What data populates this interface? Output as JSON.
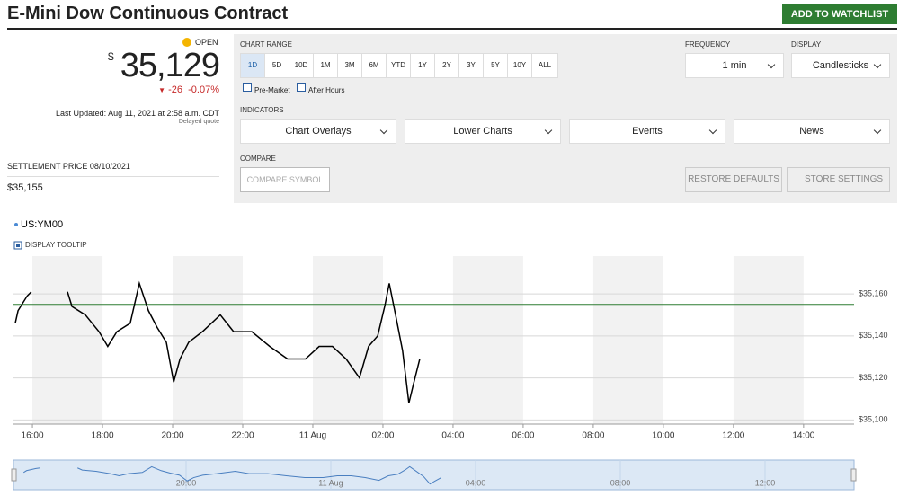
{
  "header": {
    "title": "E-Mini Dow Continuous Contract",
    "watchlist": "ADD TO WATCHLIST"
  },
  "quote": {
    "status": "OPEN",
    "currency": "$",
    "price": "35,129",
    "change": "-26",
    "change_pct": "-0.07%",
    "updated": "Last Updated: Aug 11, 2021 at 2:58 a.m. CDT",
    "delayed": "Delayed quote",
    "settlement_label": "SETTLEMENT PRICE 08/10/2021",
    "settlement": "$35,155"
  },
  "controls": {
    "chart_range_label": "CHART RANGE",
    "ranges": [
      "1D",
      "5D",
      "10D",
      "1M",
      "3M",
      "6M",
      "YTD",
      "1Y",
      "2Y",
      "3Y",
      "5Y",
      "10Y",
      "ALL"
    ],
    "checkboxes": [
      "Pre-Market",
      "After Hours"
    ],
    "frequency_label": "FREQUENCY",
    "frequency": "1 min",
    "display_label": "DISPLAY",
    "display": "Candlesticks",
    "indicators_label": "INDICATORS",
    "indicators": [
      "Chart Overlays",
      "Lower Charts",
      "Events",
      "News"
    ],
    "compare_label": "COMPARE",
    "compare_placeholder": "COMPARE SYMBOL",
    "buttons": [
      "RESTORE DEFAULTS",
      "STORE SETTINGS"
    ]
  },
  "chart_data": {
    "type": "line",
    "tooltip": "DISPLAY TOOLTIP",
    "x": [
      15.51,
      15.59,
      15.85,
      15.97,
      16.5,
      17.0,
      17.13,
      17.51,
      17.9,
      18.15,
      18.41,
      18.79,
      19.05,
      19.31,
      19.56,
      19.82,
      20.03,
      20.21,
      20.46,
      20.85,
      21.36,
      21.74,
      22.26,
      22.77,
      23.28,
      23.79,
      24.18,
      24.56,
      24.95,
      25.33,
      25.59,
      25.85,
      26.05,
      26.18,
      26.36,
      26.56,
      26.74,
      26.87,
      27.05
    ],
    "series": [
      {
        "name": "US:YM00",
        "color": "#000000",
        "values": [
          35146,
          35152,
          35159,
          35161,
          null,
          35161,
          35154,
          35150,
          35142,
          35135,
          35142,
          35146,
          35165,
          35152,
          35144,
          35137,
          35118,
          35129,
          35137,
          35142,
          35150,
          35142,
          35142,
          35135,
          35129,
          35129,
          35135,
          35135,
          35129,
          35120,
          35135,
          35140,
          35154,
          35165,
          35150,
          35133,
          35108,
          35117,
          35129
        ]
      }
    ],
    "reference_line": {
      "value": 35155,
      "color": "#2e7d32"
    },
    "xlim": [
      15.46,
      39.44
    ],
    "ylim": [
      35098,
      35178
    ],
    "xticks": [
      {
        "value": 16,
        "label": "16:00"
      },
      {
        "value": 18,
        "label": "18:00"
      },
      {
        "value": 20,
        "label": "20:00"
      },
      {
        "value": 22,
        "label": "22:00"
      },
      {
        "value": 24,
        "label": "11 Aug"
      },
      {
        "value": 26,
        "label": "02:00"
      },
      {
        "value": 28,
        "label": "04:00"
      },
      {
        "value": 30,
        "label": "06:00"
      },
      {
        "value": 32,
        "label": "08:00"
      },
      {
        "value": 34,
        "label": "10:00"
      },
      {
        "value": 36,
        "label": "12:00"
      },
      {
        "value": 38,
        "label": "14:00"
      }
    ],
    "yticks": [
      {
        "value": 35100,
        "label": "$35,100"
      },
      {
        "value": 35120,
        "label": "$35,120"
      },
      {
        "value": 35140,
        "label": "$35,140"
      },
      {
        "value": 35160,
        "label": "$35,160"
      }
    ],
    "navigator": {
      "xlim": [
        15.23,
        38.46
      ],
      "xticks": [
        {
          "value": 20,
          "label": "20:00"
        },
        {
          "value": 24,
          "label": "11 Aug"
        },
        {
          "value": 28,
          "label": "04:00"
        },
        {
          "value": 32,
          "label": "08:00"
        },
        {
          "value": 36,
          "label": "12:00"
        }
      ]
    }
  }
}
